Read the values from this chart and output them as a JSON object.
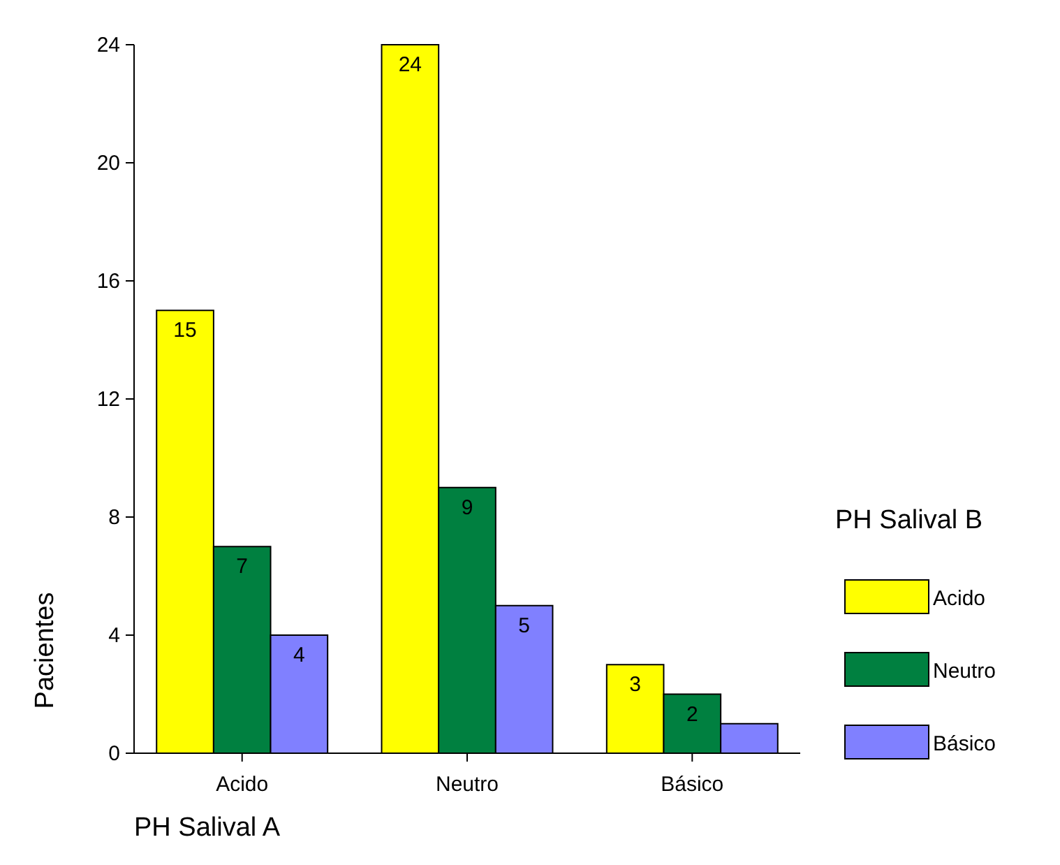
{
  "chart_data": {
    "type": "bar",
    "xlabel": "PH Salival A",
    "ylabel": "Pacientes",
    "legend_title": "PH Salival B",
    "categories": [
      "Acido",
      "Neutro",
      "Básico"
    ],
    "series": [
      {
        "name": "Acido",
        "color": "#ffff00",
        "values": [
          15,
          24,
          3
        ],
        "value_labels": [
          "15",
          "24",
          "3"
        ]
      },
      {
        "name": "Neutro",
        "color": "#008040",
        "values": [
          7,
          9,
          2
        ],
        "value_labels": [
          "7",
          "9",
          "2"
        ]
      },
      {
        "name": "Básico",
        "color": "#8080ff",
        "values": [
          4,
          5,
          1
        ],
        "value_labels": [
          "4",
          "5",
          null
        ]
      }
    ],
    "ylim": [
      0,
      24
    ],
    "yticks": [
      0,
      4,
      8,
      12,
      16,
      20,
      24
    ],
    "grid": false,
    "legend": "right"
  }
}
